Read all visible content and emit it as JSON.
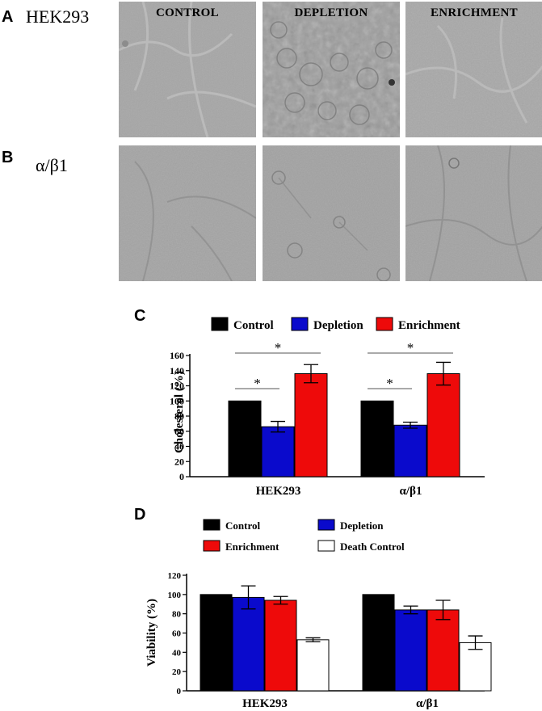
{
  "panels": {
    "a": {
      "letter": "A",
      "row_label": "HEK293"
    },
    "b": {
      "letter": "B",
      "row_label": "α/β1"
    },
    "c": {
      "letter": "C"
    },
    "d": {
      "letter": "D"
    }
  },
  "image_columns": [
    "CONTROL",
    "DEPLETION",
    "ENRICHMENT"
  ],
  "colors": {
    "control": "#000000",
    "depletion": "#0a0acc",
    "enrichment": "#ee0a0a",
    "death_control": "#ffffff"
  },
  "chart_data": [
    {
      "type": "bar",
      "panel": "C",
      "categories": [
        "HEK293",
        "α/β1"
      ],
      "series": [
        {
          "name": "Control",
          "values": [
            100,
            100
          ],
          "errors": [
            0,
            0
          ],
          "color": "#000000"
        },
        {
          "name": "Depletion",
          "values": [
            66,
            68
          ],
          "errors": [
            7,
            4
          ],
          "color": "#0a0acc"
        },
        {
          "name": "Enrichment",
          "values": [
            136,
            136
          ],
          "errors": [
            12,
            15
          ],
          "color": "#ee0a0a"
        }
      ],
      "xlabel": "",
      "ylabel": "Cholesterol (%)",
      "ylim": [
        0,
        160
      ],
      "yticks": [
        0,
        20,
        40,
        60,
        80,
        100,
        120,
        140,
        160
      ],
      "legend_position": "top",
      "significance": [
        {
          "category": "HEK293",
          "from": "Control",
          "to": "Depletion",
          "label": "*"
        },
        {
          "category": "HEK293",
          "from": "Control",
          "to": "Enrichment",
          "label": "*"
        },
        {
          "category": "α/β1",
          "from": "Control",
          "to": "Depletion",
          "label": "*"
        },
        {
          "category": "α/β1",
          "from": "Control",
          "to": "Enrichment",
          "label": "*"
        }
      ]
    },
    {
      "type": "bar",
      "panel": "D",
      "categories": [
        "HEK293",
        "α/β1"
      ],
      "series": [
        {
          "name": "Control",
          "values": [
            100,
            100
          ],
          "errors": [
            0,
            0
          ],
          "color": "#000000"
        },
        {
          "name": "Depletion",
          "values": [
            97,
            84
          ],
          "errors": [
            12,
            4
          ],
          "color": "#0a0acc"
        },
        {
          "name": "Enrichment",
          "values": [
            94,
            84
          ],
          "errors": [
            4,
            10
          ],
          "color": "#ee0a0a"
        },
        {
          "name": "Death Control",
          "values": [
            53,
            50
          ],
          "errors": [
            2,
            7
          ],
          "color": "#ffffff"
        }
      ],
      "xlabel": "",
      "ylabel": "Viability  (%)",
      "ylim": [
        0,
        120
      ],
      "yticks": [
        0,
        20,
        40,
        60,
        80,
        100,
        120
      ],
      "legend_position": "top"
    }
  ]
}
